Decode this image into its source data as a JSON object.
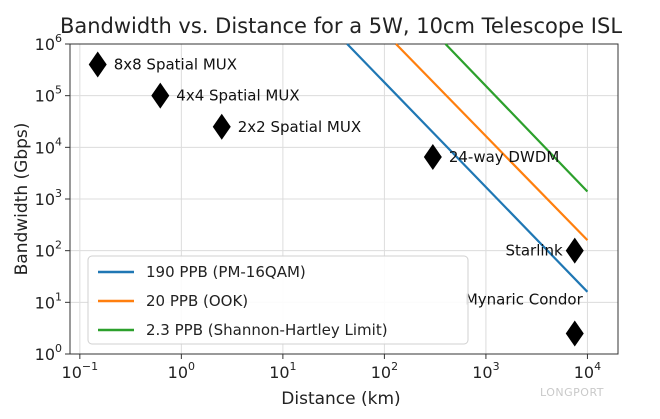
{
  "chart_data": {
    "type": "line",
    "title": "Bandwidth vs. Distance for a 5W, 10cm Telescope ISL",
    "xlabel": "Distance (km)",
    "ylabel": "Bandwidth (Gbps)",
    "xscale": "log",
    "yscale": "log",
    "xlim": [
      0.08,
      20000
    ],
    "ylim": [
      1,
      1000000
    ],
    "grid": true,
    "legend_position": "bottom-left",
    "x_ticks": [
      {
        "base": "10",
        "exp": "−1",
        "value": 0.1
      },
      {
        "base": "10",
        "exp": "0",
        "value": 1
      },
      {
        "base": "10",
        "exp": "1",
        "value": 10
      },
      {
        "base": "10",
        "exp": "2",
        "value": 100
      },
      {
        "base": "10",
        "exp": "3",
        "value": 1000
      },
      {
        "base": "10",
        "exp": "4",
        "value": 10000
      }
    ],
    "y_ticks": [
      {
        "base": "10",
        "exp": "0",
        "value": 1
      },
      {
        "base": "10",
        "exp": "1",
        "value": 10
      },
      {
        "base": "10",
        "exp": "2",
        "value": 100
      },
      {
        "base": "10",
        "exp": "3",
        "value": 1000
      },
      {
        "base": "10",
        "exp": "4",
        "value": 10000
      },
      {
        "base": "10",
        "exp": "5",
        "value": 100000
      },
      {
        "base": "10",
        "exp": "6",
        "value": 1000000
      }
    ],
    "series": [
      {
        "name": "190 PPB (PM-16QAM)",
        "color": "#1f77b4",
        "x": [
          43,
          10000
        ],
        "y": [
          1000000,
          16
        ]
      },
      {
        "name": "20 PPB (OOK)",
        "color": "#ff7f0e",
        "x": [
          130,
          10000
        ],
        "y": [
          1000000,
          160
        ]
      },
      {
        "name": "2.3 PPB (Shannon-Hartley Limit)",
        "color": "#2ca02c",
        "x": [
          400,
          10000
        ],
        "y": [
          1000000,
          1400
        ]
      }
    ],
    "points": [
      {
        "label": "8x8 Spatial MUX",
        "x": 0.15,
        "y": 400000,
        "label_side": "right"
      },
      {
        "label": "4x4 Spatial MUX",
        "x": 0.62,
        "y": 100000,
        "label_side": "right"
      },
      {
        "label": "2x2 Spatial MUX",
        "x": 2.5,
        "y": 25000,
        "label_side": "right"
      },
      {
        "label": "24-way DWDM",
        "x": 300,
        "y": 6500,
        "label_side": "right"
      },
      {
        "label": "Starlink",
        "x": 7500,
        "y": 100,
        "label_side": "left"
      },
      {
        "label": "Mynaric Condor",
        "x": 7500,
        "y": 2.5,
        "label_side": "above-left"
      }
    ]
  },
  "watermark": "LONGPORT"
}
